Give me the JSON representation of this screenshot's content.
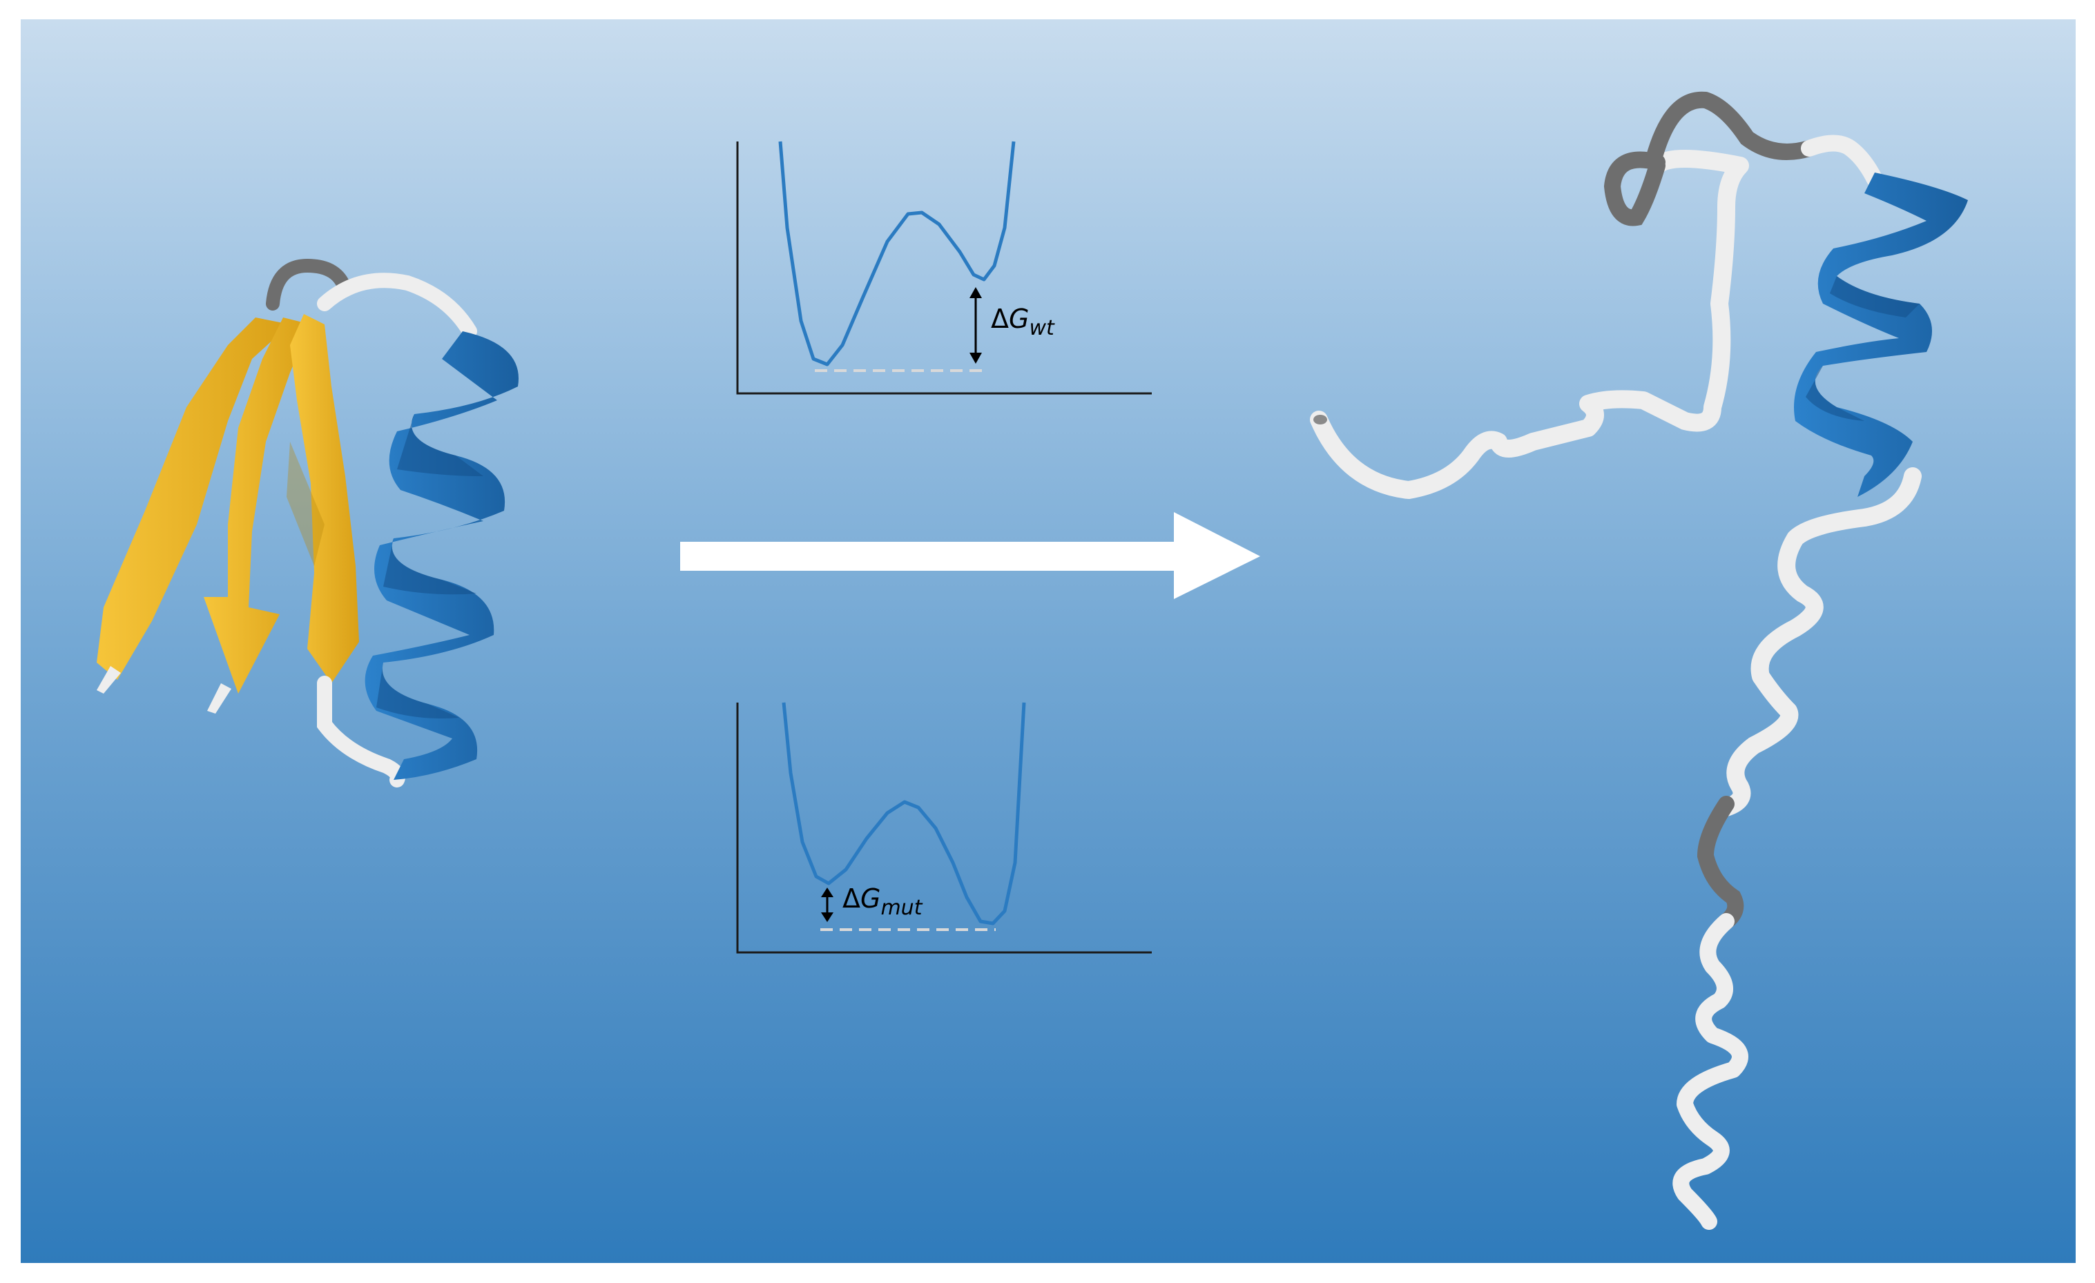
{
  "panels": {
    "wild_type": {
      "label": {
        "delta": "Δ",
        "symbol": "G",
        "subscript": "wt"
      },
      "curve_color": "#2b7bc1"
    },
    "mutant": {
      "label": {
        "delta": "Δ",
        "symbol": "G",
        "subscript": "mut"
      },
      "curve_color": "#2b7bc1"
    }
  },
  "colors": {
    "background_top": "#c8dcee",
    "background_bottom": "#2f7bbb",
    "helix": "#1f6fb8",
    "strand": "#f2b928",
    "coil": "#eeeeee",
    "turn": "#6e6e6e",
    "arrow": "#ffffff",
    "baseline_dashes": "#d9d9d9"
  },
  "icons": [
    "folded-protein-icon",
    "unfolded-protein-icon",
    "transition-arrow-icon"
  ]
}
